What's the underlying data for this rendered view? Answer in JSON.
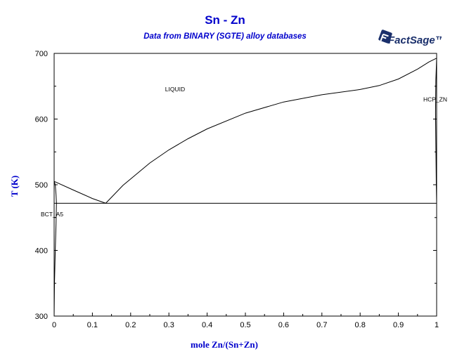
{
  "header": {
    "title": "Sn - Zn",
    "subtitle": "Data from BINARY (SGTE) alloy databases",
    "logo_text": "FactSage™",
    "logo_color": "#1a2f6b"
  },
  "chart_data": {
    "type": "line",
    "xlabel": "mole Zn/(Sn+Zn)",
    "ylabel": "T (K)",
    "xlim": [
      0,
      1
    ],
    "ylim": [
      300,
      700
    ],
    "xticks": [
      "0",
      "0.1",
      "0.2",
      "0.3",
      "0.4",
      "0.5",
      "0.6",
      "0.7",
      "0.8",
      "0.9",
      "1"
    ],
    "yticks": [
      "300",
      "400",
      "500",
      "600",
      "700"
    ],
    "ytick_values": [
      300,
      400,
      500,
      600,
      700
    ],
    "grid": false,
    "axis_color": "#000000",
    "label_color": "#0000cc",
    "series": [
      {
        "x": [
          0,
          0.05,
          0.1,
          0.135,
          0.18,
          0.25,
          0.3,
          0.35,
          0.4,
          0.5,
          0.6,
          0.7,
          0.8,
          0.85,
          0.9,
          0.95,
          0.98,
          1.0
        ],
        "y": [
          505.1,
          492,
          479,
          471.8,
          499,
          533,
          553,
          570,
          585,
          609,
          626,
          637,
          645,
          651,
          661,
          676,
          687,
          692.7
        ]
      },
      {
        "x": [
          0,
          1
        ],
        "y": [
          471.8,
          471.8
        ]
      },
      {
        "x": [
          0,
          0.003,
          0.005,
          0.006,
          0.005,
          0.003,
          0.001,
          0
        ],
        "y": [
          505.1,
          500,
          485,
          471.8,
          440,
          400,
          350,
          300
        ]
      },
      {
        "x": [
          1.0,
          0.998,
          0.997,
          0.998,
          0.999,
          1.0
        ],
        "y": [
          692.7,
          660,
          610,
          560,
          500,
          471.8
        ]
      }
    ],
    "annotations": [
      {
        "text": "LIQUID",
        "x": 0.29,
        "y": 642
      },
      {
        "text": "HCP_ZN",
        "x": 0.965,
        "y": 627
      },
      {
        "text": "BCT_A5",
        "x": -0.035,
        "y": 452
      }
    ]
  }
}
